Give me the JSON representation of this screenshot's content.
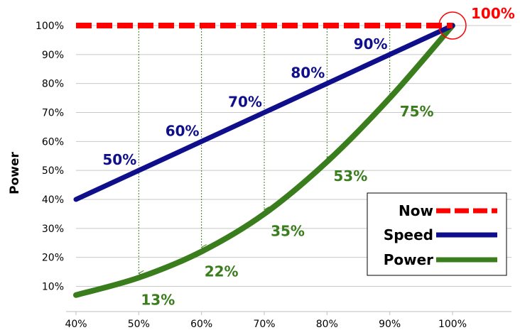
{
  "chart_data": {
    "type": "line",
    "ylabel": "Power",
    "xlabel": "",
    "x": [
      40,
      50,
      60,
      70,
      80,
      90,
      100
    ],
    "x_tick_labels": [
      "40%",
      "50%",
      "60%",
      "70%",
      "80%",
      "90%",
      "100%"
    ],
    "y_tick_labels": [
      "10%",
      "20%",
      "30%",
      "40%",
      "50%",
      "60%",
      "70%",
      "80%",
      "90%",
      "100%"
    ],
    "xlim": [
      40,
      100
    ],
    "ylim": [
      7,
      102
    ],
    "grid": "horizontal",
    "legend_position": "bottom-right",
    "series": [
      {
        "name": "Now",
        "style": "dashed",
        "color": "#ff0000",
        "x": [
          40,
          100
        ],
        "y": [
          100,
          100
        ]
      },
      {
        "name": "Speed",
        "style": "solid",
        "color": "#0f0f8c",
        "x": [
          40,
          50,
          60,
          70,
          80,
          90,
          100
        ],
        "y": [
          40,
          50,
          60,
          70,
          80,
          90,
          100
        ],
        "data_labels": [
          {
            "x": 50,
            "text": "50%"
          },
          {
            "x": 60,
            "text": "60%"
          },
          {
            "x": 70,
            "text": "70%"
          },
          {
            "x": 80,
            "text": "80%"
          },
          {
            "x": 90,
            "text": "90%"
          }
        ]
      },
      {
        "name": "Power",
        "style": "solid",
        "color": "#3a7d1c",
        "x": [
          40,
          50,
          60,
          70,
          80,
          90,
          100
        ],
        "y": [
          7,
          13,
          22,
          35,
          53,
          75,
          100
        ],
        "data_labels": [
          {
            "x": 50,
            "text": "13%"
          },
          {
            "x": 60,
            "text": "22%"
          },
          {
            "x": 70,
            "text": "35%"
          },
          {
            "x": 80,
            "text": "53%"
          },
          {
            "x": 90,
            "text": "75%"
          }
        ]
      }
    ],
    "annotations": [
      {
        "text": "100%",
        "x": 100,
        "y": 100,
        "color": "#ff0000",
        "circled": true
      },
      {
        "type": "arrows",
        "from_series": "Speed",
        "to_series": "Power",
        "x": [
          50,
          60,
          70,
          80,
          90
        ]
      }
    ],
    "legend": [
      {
        "label": "Now",
        "color": "#ff0000",
        "style": "dashed"
      },
      {
        "label": "Speed",
        "color": "#0f0f8c",
        "style": "solid"
      },
      {
        "label": "Power",
        "color": "#3a7d1c",
        "style": "solid"
      }
    ]
  }
}
